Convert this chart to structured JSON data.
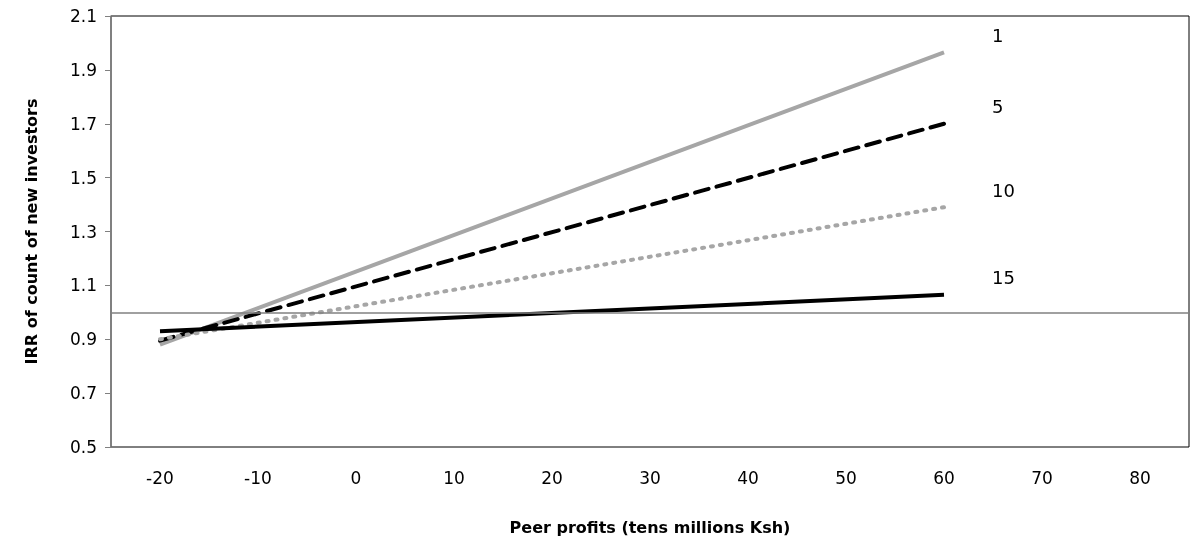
{
  "chart_data": {
    "type": "line",
    "xlabel": "Peer profits (tens millions Ksh)",
    "ylabel": "IRR of count of new investors",
    "x": [
      -20,
      60
    ],
    "series": [
      {
        "name": "1",
        "color": "#a6a6a6",
        "values": [
          0.88,
          1.965
        ],
        "line_style": "solid"
      },
      {
        "name": "5",
        "color": "#000000",
        "values": [
          0.895,
          1.7
        ],
        "line_style": "dashed"
      },
      {
        "name": "10",
        "color": "#a6a6a6",
        "values": [
          0.9,
          1.39
        ],
        "line_style": "dotted"
      },
      {
        "name": "15",
        "color": "#000000",
        "values": [
          0.93,
          1.065
        ],
        "line_style": "solid"
      }
    ],
    "xlim": [
      -25,
      85
    ],
    "xticks": [
      -20,
      -10,
      0,
      10,
      20,
      30,
      40,
      50,
      60,
      70,
      80
    ],
    "ylim": [
      0.5,
      2.1
    ],
    "yticks": [
      0.5,
      0.7,
      0.9,
      1.1,
      1.3,
      1.5,
      1.7,
      1.9,
      2.1
    ],
    "ref_lines": [
      {
        "axis": "y",
        "value": 1,
        "color": "#808080"
      }
    ],
    "grid": false,
    "legend": false,
    "marker": "none"
  }
}
